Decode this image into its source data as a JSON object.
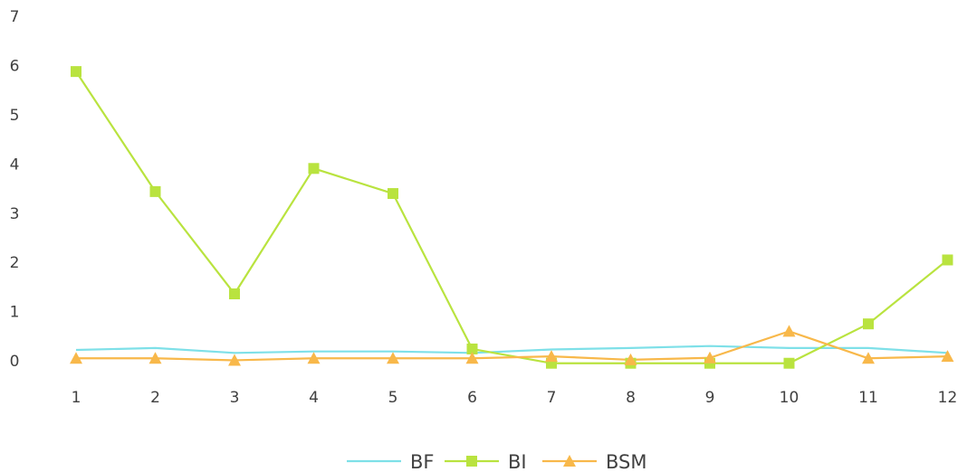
{
  "chart_data": {
    "type": "line",
    "title": "",
    "xlabel": "",
    "ylabel": "",
    "categories": [
      "1",
      "2",
      "3",
      "4",
      "5",
      "6",
      "7",
      "8",
      "9",
      "10",
      "11",
      "12"
    ],
    "ylim": [
      0,
      7
    ],
    "yticks": [
      "0",
      "1",
      "2",
      "3",
      "4",
      "5",
      "6",
      "7"
    ],
    "grid": false,
    "legend_position": "bottom",
    "series": [
      {
        "name": "BF",
        "color": "#7ee0e8",
        "marker": "none",
        "values": [
          0.22,
          0.26,
          0.16,
          0.19,
          0.19,
          0.16,
          0.23,
          0.26,
          0.3,
          0.26,
          0.26,
          0.16
        ]
      },
      {
        "name": "BI",
        "color": "#b9e33f",
        "marker": "square",
        "values": [
          5.88,
          3.44,
          1.36,
          3.91,
          3.4,
          0.24,
          -0.05,
          -0.05,
          -0.05,
          -0.05,
          0.75,
          2.05
        ]
      },
      {
        "name": "BSM",
        "color": "#f8b84a",
        "marker": "triangle",
        "values": [
          0.05,
          0.05,
          0.01,
          0.05,
          0.05,
          0.05,
          0.09,
          0.02,
          0.06,
          0.6,
          0.05,
          0.09
        ]
      }
    ]
  }
}
